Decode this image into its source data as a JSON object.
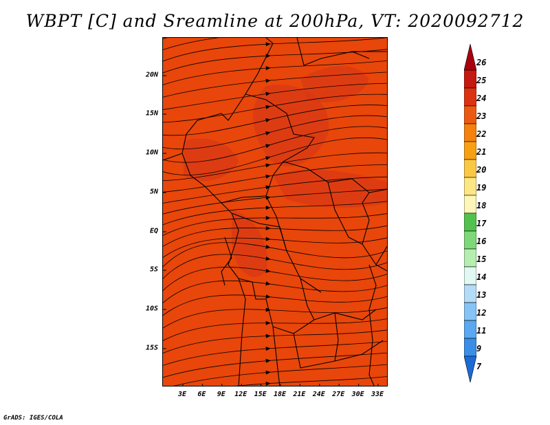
{
  "title": "WBPT [C] and Sreamline at 200hPa, VT: 2020092712",
  "credit": "GrADS: IGES/COLA",
  "map": {
    "lat_labels": [
      "20N",
      "15N",
      "10N",
      "5N",
      "EQ",
      "5S",
      "10S",
      "15S"
    ],
    "lon_labels": [
      "3E",
      "6E",
      "9E",
      "12E",
      "15E",
      "18E",
      "21E",
      "24E",
      "27E",
      "30E",
      "33E"
    ],
    "base_color": "#e8460a",
    "warm_color": "#d3351a"
  },
  "colorbar": {
    "labels": [
      "26",
      "25",
      "24",
      "23",
      "22",
      "21",
      "20",
      "19",
      "18",
      "17",
      "16",
      "15",
      "14",
      "13",
      "12",
      "11",
      "9",
      "7"
    ],
    "colors": [
      "#a8000e",
      "#c41a10",
      "#dc3212",
      "#ec5a12",
      "#f4820c",
      "#f8a014",
      "#fbc844",
      "#fde684",
      "#fdf6b8",
      "#52c24e",
      "#7ed878",
      "#b6eeb0",
      "#e2f8f2",
      "#b4dcf8",
      "#86c4f6",
      "#5aa8f0",
      "#3a8ee6",
      "#1c6ad6"
    ]
  }
}
